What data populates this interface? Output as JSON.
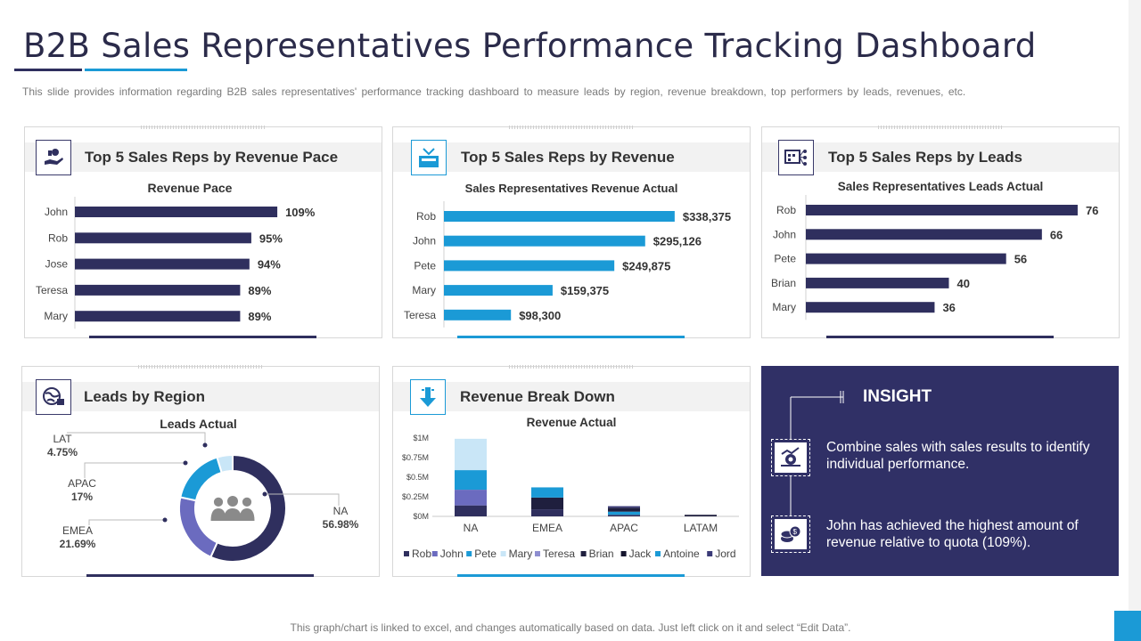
{
  "title": "B2B Sales Representatives Performance Tracking Dashboard",
  "subtitle": "This slide provides information regarding B2B sales representatives' performance tracking dashboard to measure leads by region, revenue breakdown, top performers by leads, revenues, etc.",
  "footnote": "This graph/chart is linked to excel, and changes automatically based on data. Just left click on it and select “Edit Data”.",
  "colors": {
    "navy": "#2f2f5e",
    "blue": "#1b9ad6"
  },
  "panels": {
    "revenue_pace": {
      "heading": "Top 5 Sales Reps by Revenue Pace",
      "icon": "hand-money-icon",
      "chart_title": "Revenue Pace"
    },
    "revenue": {
      "heading": "Top 5 Sales Reps by Revenue",
      "icon": "money-basket-icon",
      "chart_title": "Sales Representatives Revenue Actual"
    },
    "leads": {
      "heading": "Top 5 Sales Reps by Leads",
      "icon": "calendar-network-icon",
      "chart_title": "Sales Representatives Leads Actual"
    },
    "region": {
      "heading": "Leads by Region",
      "icon": "globe-icon",
      "chart_title": "Leads Actual"
    },
    "breakdown": {
      "heading": "Revenue Break Down",
      "icon": "download-arrow-icon",
      "chart_title": "Revenue Actual"
    }
  },
  "insight": {
    "title": "INSIGHT",
    "items": [
      {
        "text": "Combine sales with sales results to identify individual performance.",
        "icon": "gear-chart-icon"
      },
      {
        "text": "John has achieved the highest amount of revenue relative to quota (109%).",
        "icon": "coins-icon"
      }
    ]
  },
  "chart_data": [
    {
      "id": "revenue_pace",
      "type": "bar",
      "orientation": "horizontal",
      "title": "Revenue Pace",
      "categories": [
        "John",
        "Rob",
        "Jose",
        "Teresa",
        "Mary"
      ],
      "values": [
        109,
        95,
        94,
        89,
        89
      ],
      "labels": [
        "109%",
        "95%",
        "94%",
        "89%",
        "89%"
      ],
      "xlim": [
        0,
        120
      ],
      "color": "#2f2f5e"
    },
    {
      "id": "revenue",
      "type": "bar",
      "orientation": "horizontal",
      "title": "Sales Representatives Revenue Actual",
      "categories": [
        "Rob",
        "John",
        "Pete",
        "Mary",
        "Teresa"
      ],
      "values": [
        338375,
        295126,
        249875,
        159375,
        98300
      ],
      "labels": [
        "$338,375",
        "$295,126",
        "$249,875",
        "$159,375",
        "$98,300"
      ],
      "xlim": [
        0,
        400000
      ],
      "color": "#1b9ad6"
    },
    {
      "id": "leads",
      "type": "bar",
      "orientation": "horizontal",
      "title": "Sales Representatives Leads Actual",
      "categories": [
        "Rob",
        "John",
        "Pete",
        "Brian",
        "Mary"
      ],
      "values": [
        76,
        66,
        56,
        40,
        36
      ],
      "labels": [
        "76",
        "66",
        "56",
        "40",
        "36"
      ],
      "xlim": [
        0,
        80
      ],
      "color": "#2f2f5e"
    },
    {
      "id": "region",
      "type": "pie",
      "title": "Leads Actual",
      "categories": [
        "NA",
        "EMEA",
        "APAC",
        "LAT"
      ],
      "values": [
        56.98,
        21.69,
        17,
        4.75
      ],
      "labels": [
        "56.98%",
        "21.69%",
        "17%",
        "4.75%"
      ],
      "colors": [
        "#2f2f5e",
        "#6b6bbf",
        "#1b9ad6",
        "#c9e6f7"
      ]
    },
    {
      "id": "breakdown",
      "type": "bar",
      "stacked": true,
      "title": "Revenue Actual",
      "categories": [
        "NA",
        "EMEA",
        "APAC",
        "LATAM"
      ],
      "ylim": [
        0,
        1000000
      ],
      "yticks": [
        "$0M",
        "$0.25M",
        "$0.5M",
        "$0.75M",
        "$1M"
      ],
      "series": [
        {
          "name": "Rob",
          "color": "#2f2f5e",
          "values": [
            140000,
            90000,
            20000,
            0
          ]
        },
        {
          "name": "John",
          "color": "#6b6bbf",
          "values": [
            200000,
            0,
            0,
            0
          ]
        },
        {
          "name": "Pete",
          "color": "#1b9ad6",
          "values": [
            250000,
            0,
            40000,
            0
          ]
        },
        {
          "name": "Mary",
          "color": "#c9e6f7",
          "values": [
            400000,
            0,
            0,
            0
          ]
        },
        {
          "name": "Teresa",
          "color": "#8e8ed0",
          "values": [
            0,
            0,
            0,
            0
          ]
        },
        {
          "name": "Brian",
          "color": "#1f1f3e",
          "values": [
            0,
            150000,
            50000,
            20000
          ]
        },
        {
          "name": "Jack",
          "color": "#15152e",
          "values": [
            0,
            0,
            0,
            0
          ]
        },
        {
          "name": "Antoine",
          "color": "#1b9ad6",
          "values": [
            0,
            130000,
            0,
            0
          ]
        },
        {
          "name": "Jord",
          "color": "#3b3b78",
          "values": [
            0,
            0,
            20000,
            0
          ]
        }
      ]
    }
  ]
}
